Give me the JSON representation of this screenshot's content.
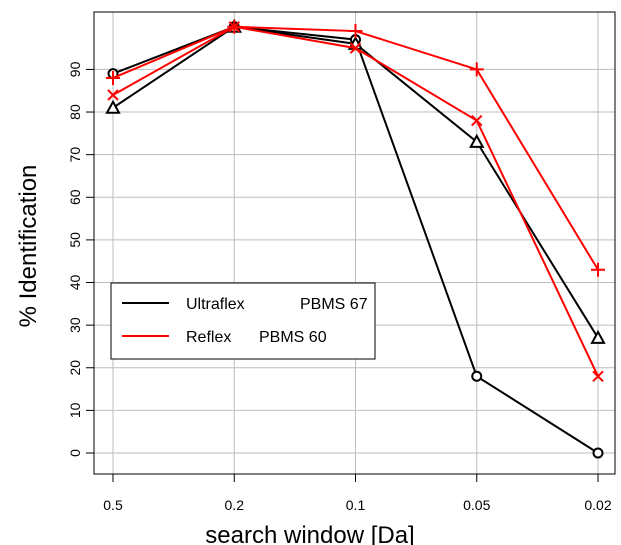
{
  "chart_data": {
    "type": "line",
    "title": "",
    "xlabel": "search window [Da]",
    "ylabel": "% Identification",
    "x": [
      "0.5",
      "0.2",
      "0.1",
      "0.05",
      "0.02"
    ],
    "ylim": [
      -5,
      101
    ],
    "yticks": [
      0,
      10,
      20,
      30,
      40,
      50,
      60,
      70,
      80,
      90
    ],
    "grid": true,
    "legend_position": "bottom-left",
    "legend": [
      {
        "instrument": "Ultraflex",
        "label": "PBMS 67",
        "color": "#000000"
      },
      {
        "instrument": "Reflex",
        "label": "PBMS 60",
        "color": "#ff0000"
      }
    ],
    "series": [
      {
        "color": "#000000",
        "marker": "circle",
        "values": [
          89,
          100,
          97,
          18,
          0
        ]
      },
      {
        "color": "#000000",
        "marker": "triangle",
        "values": [
          81,
          100,
          96,
          73,
          27
        ]
      },
      {
        "color": "#ff0000",
        "marker": "plus",
        "values": [
          88,
          100,
          99,
          90,
          43
        ]
      },
      {
        "color": "#ff0000",
        "marker": "cross",
        "values": [
          84,
          100,
          95,
          78,
          18
        ]
      }
    ]
  }
}
